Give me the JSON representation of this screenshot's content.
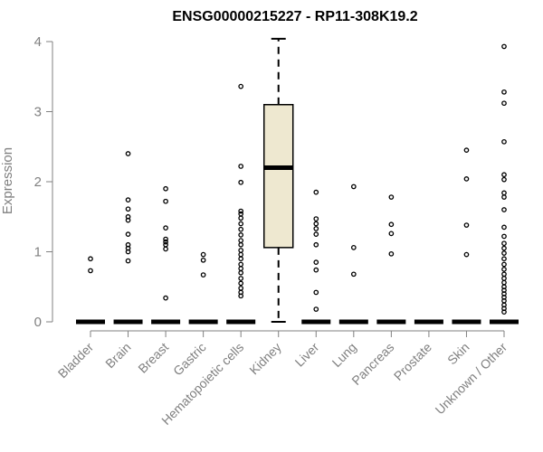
{
  "chart_data": {
    "type": "box",
    "title": "ENSG00000215227 - RP11-308K19.2",
    "xlabel": "",
    "ylabel": "Expression",
    "ylim": [
      0,
      4
    ],
    "yticks": [
      0,
      1,
      2,
      3,
      4
    ],
    "categories": [
      "Bladder",
      "Brain",
      "Breast",
      "Gastric",
      "Hematopoietic cells",
      "Kidney",
      "Liver",
      "Lung",
      "Pancreas",
      "Prostate",
      "Skin",
      "Unknown / Other"
    ],
    "boxes": [
      {
        "category": "Bladder",
        "q1": 0,
        "median": 0,
        "q3": 0,
        "whisker_low": 0,
        "whisker_high": 0,
        "outliers": [
          0.9,
          0.73
        ]
      },
      {
        "category": "Brain",
        "q1": 0,
        "median": 0,
        "q3": 0,
        "whisker_low": 0,
        "whisker_high": 0,
        "outliers": [
          2.4,
          1.74,
          1.61,
          1.5,
          1.45,
          1.25,
          1.1,
          1.05,
          1.0,
          0.87
        ]
      },
      {
        "category": "Breast",
        "q1": 0,
        "median": 0,
        "q3": 0,
        "whisker_low": 0,
        "whisker_high": 0,
        "outliers": [
          1.9,
          1.72,
          1.34,
          1.18,
          1.14,
          1.1,
          1.04,
          0.34
        ]
      },
      {
        "category": "Gastric",
        "q1": 0,
        "median": 0,
        "q3": 0,
        "whisker_low": 0,
        "whisker_high": 0,
        "outliers": [
          0.96,
          0.88,
          0.67
        ]
      },
      {
        "category": "Hematopoietic cells",
        "q1": 0,
        "median": 0,
        "q3": 0,
        "whisker_low": 0,
        "whisker_high": 0,
        "outliers": [
          3.36,
          2.22,
          1.99,
          1.58,
          1.54,
          1.48,
          1.4,
          1.32,
          1.24,
          1.16,
          1.1,
          1.02,
          0.96,
          0.9,
          0.82,
          0.76,
          0.7,
          0.62,
          0.55,
          0.48,
          0.42,
          0.37
        ]
      },
      {
        "category": "Kidney",
        "q1": 1.06,
        "median": 2.2,
        "q3": 3.1,
        "whisker_low": 0,
        "whisker_high": 4.04,
        "outliers": []
      },
      {
        "category": "Liver",
        "q1": 0,
        "median": 0,
        "q3": 0,
        "whisker_low": 0,
        "whisker_high": 0,
        "outliers": [
          1.85,
          1.47,
          1.4,
          1.33,
          1.25,
          1.1,
          0.85,
          0.74,
          0.42,
          0.18
        ]
      },
      {
        "category": "Lung",
        "q1": 0,
        "median": 0,
        "q3": 0,
        "whisker_low": 0,
        "whisker_high": 0,
        "outliers": [
          1.93,
          1.06,
          0.68
        ]
      },
      {
        "category": "Pancreas",
        "q1": 0,
        "median": 0,
        "q3": 0,
        "whisker_low": 0,
        "whisker_high": 0,
        "outliers": [
          1.78,
          1.39,
          1.26,
          0.97
        ]
      },
      {
        "category": "Prostate",
        "q1": 0,
        "median": 0,
        "q3": 0,
        "whisker_low": 0,
        "whisker_high": 0,
        "outliers": []
      },
      {
        "category": "Skin",
        "q1": 0,
        "median": 0,
        "q3": 0,
        "whisker_low": 0,
        "whisker_high": 0,
        "outliers": [
          2.45,
          2.04,
          1.38,
          0.96
        ]
      },
      {
        "category": "Unknown / Other",
        "q1": 0,
        "median": 0,
        "q3": 0,
        "whisker_low": 0,
        "whisker_high": 0,
        "outliers": [
          3.93,
          3.28,
          3.12,
          2.57,
          2.1,
          2.03,
          1.84,
          1.78,
          1.6,
          1.35,
          1.22,
          1.12,
          1.05,
          0.98,
          0.9,
          0.82,
          0.75,
          0.68,
          0.62,
          0.56,
          0.5,
          0.45,
          0.4,
          0.35,
          0.3,
          0.24,
          0.19,
          0.14
        ]
      }
    ],
    "colors": {
      "box_fill": "#EEE8D0",
      "box_stroke": "#000000",
      "axis": "#808080",
      "text": "#808080",
      "title": "#000000"
    },
    "grid": false,
    "legend": "none"
  }
}
